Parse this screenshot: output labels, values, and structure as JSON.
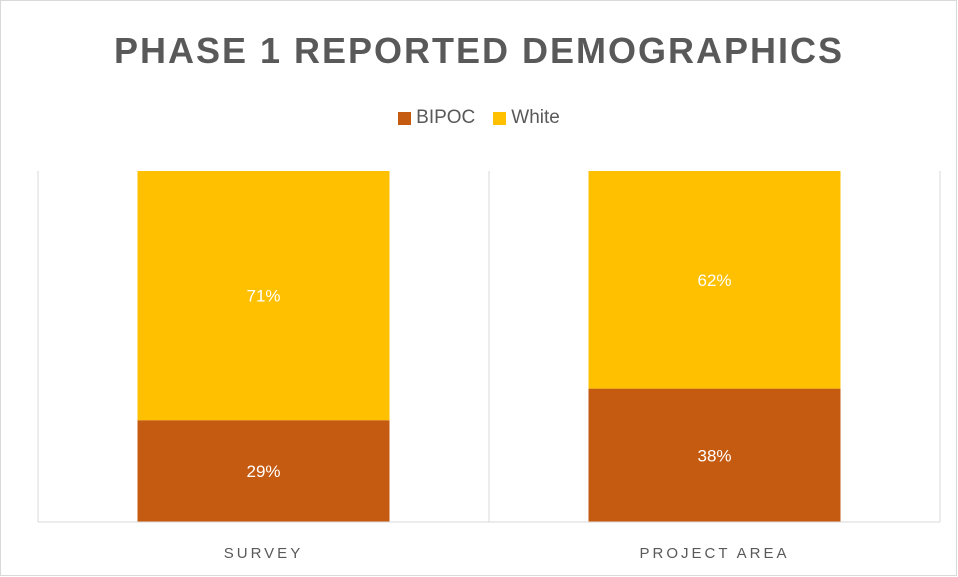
{
  "title": "PHASE 1 REPORTED DEMOGRAPHICS",
  "legend": [
    {
      "label": "BIPOC",
      "color": "#C55A11"
    },
    {
      "label": "White",
      "color": "#FFC000"
    }
  ],
  "chart_data": {
    "type": "bar",
    "stacked": true,
    "percent_stacked": true,
    "title": "PHASE 1 REPORTED DEMOGRAPHICS",
    "categories": [
      "SURVEY",
      "PROJECT AREA"
    ],
    "series": [
      {
        "name": "BIPOC",
        "values": [
          29,
          38
        ],
        "labels": [
          "29%",
          "38%"
        ],
        "color": "#C55A11"
      },
      {
        "name": "White",
        "values": [
          71,
          62
        ],
        "labels": [
          "71%",
          "62%"
        ],
        "color": "#FFC000"
      }
    ],
    "ylim": [
      0,
      100
    ],
    "legend_position": "top",
    "grid": false
  }
}
